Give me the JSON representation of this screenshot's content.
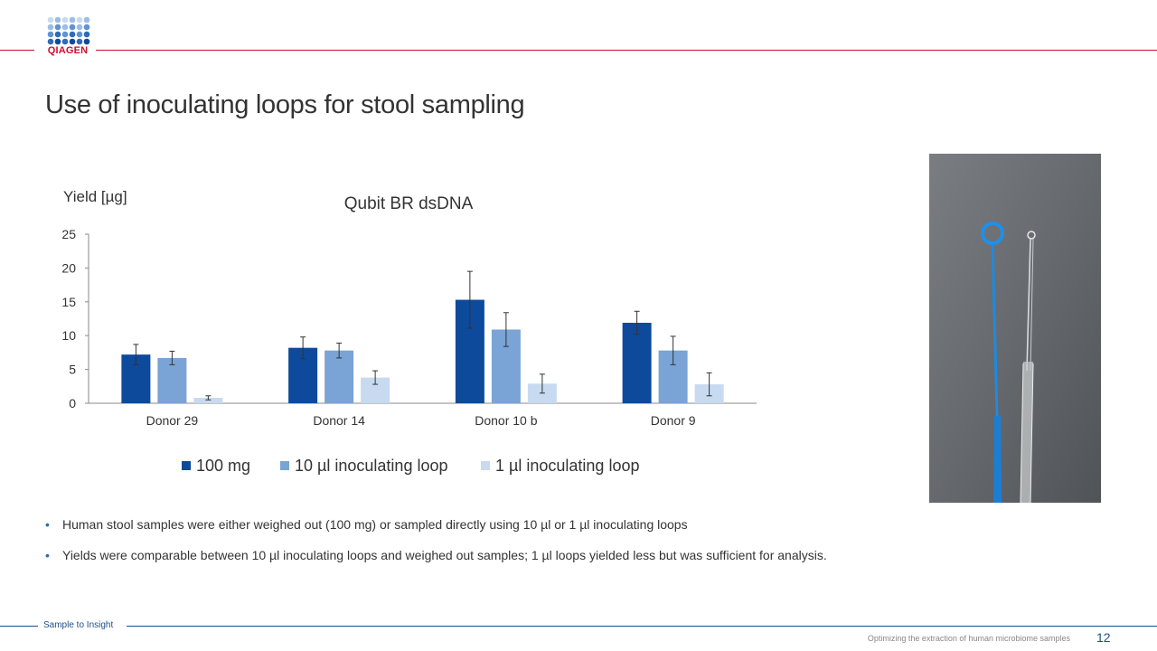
{
  "brand": {
    "name": "QIAGEN",
    "color": "#c8102e",
    "logo_icon": "qiagen-dot-grid-logo"
  },
  "slide": {
    "title": "Use of inoculating loops for stool sampling",
    "photo_icon": "inoculating-loops-photo",
    "bullets": [
      "Human stool samples were either weighed out (100 mg) or sampled directly using 10 µl or 1 µl inoculating loops",
      "Yields were comparable between 10 µl inoculating loops and weighed out samples; 1 µl loops yielded less but was sufficient for analysis."
    ]
  },
  "footer": {
    "left": "Sample to Insight",
    "right": "Optimizing the extraction of human microbiome samples",
    "page": "12"
  },
  "chart_data": {
    "type": "bar",
    "title": "Qubit BR dsDNA",
    "ylabel": "Yield [µg]",
    "xlabel": "",
    "ylim": [
      0,
      25
    ],
    "yticks": [
      0,
      5,
      10,
      15,
      20,
      25
    ],
    "categories": [
      "Donor 29",
      "Donor 14",
      "Donor 10 b",
      "Donor 9"
    ],
    "series": [
      {
        "name": "100 mg",
        "color": "#0d4a9c",
        "values": [
          7.2,
          8.2,
          15.3,
          11.9
        ],
        "errors": [
          1.5,
          1.6,
          4.2,
          1.7
        ]
      },
      {
        "name": "10 µl inoculating loop",
        "color": "#7aa3d6",
        "values": [
          6.7,
          7.8,
          10.9,
          7.8
        ],
        "errors": [
          1.0,
          1.1,
          2.5,
          2.1
        ]
      },
      {
        "name": "1 µl inoculating loop",
        "color": "#c7daf0",
        "values": [
          0.8,
          3.8,
          2.9,
          2.8
        ],
        "errors": [
          0.3,
          1.0,
          1.4,
          1.7
        ]
      }
    ],
    "legend_position": "bottom",
    "grid": false
  }
}
